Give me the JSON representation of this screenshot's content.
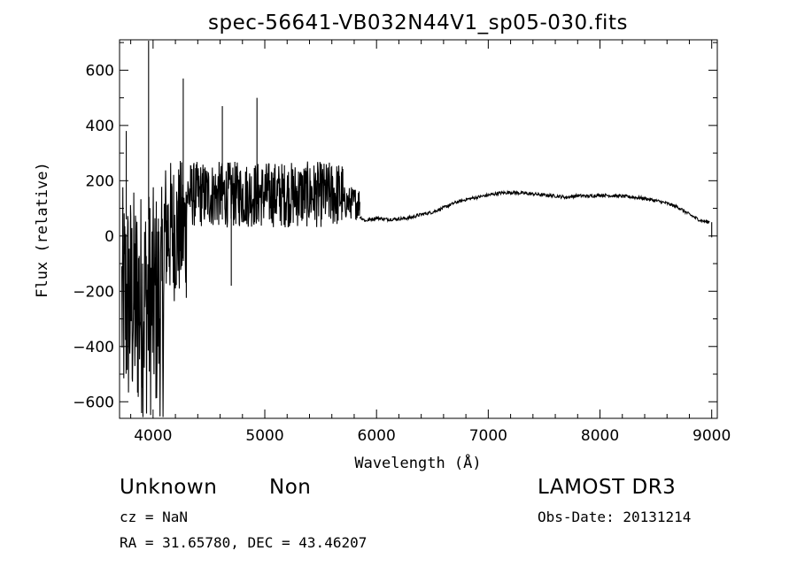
{
  "chart_data": {
    "type": "line",
    "title": "spec-56641-VB032N44V1_sp05-030.fits",
    "xlabel": "Wavelength (Å)",
    "ylabel": "Flux (relative)",
    "xlim": [
      3700,
      9050
    ],
    "ylim": [
      -660,
      710
    ],
    "xticks": [
      4000,
      5000,
      6000,
      7000,
      8000,
      9000
    ],
    "yticks": [
      -600,
      -400,
      -200,
      0,
      200,
      400,
      600
    ],
    "continuum": {
      "x": [
        5850,
        5900,
        6000,
        6100,
        6200,
        6300,
        6400,
        6500,
        6600,
        6700,
        6800,
        6900,
        7000,
        7100,
        7200,
        7300,
        7400,
        7500,
        7600,
        7700,
        7800,
        7900,
        8000,
        8100,
        8200,
        8300,
        8400,
        8500,
        8600,
        8700,
        8800,
        8900,
        8980
      ],
      "y": [
        70,
        55,
        65,
        60,
        62,
        66,
        78,
        86,
        102,
        120,
        132,
        140,
        148,
        155,
        158,
        155,
        152,
        148,
        145,
        140,
        146,
        144,
        148,
        146,
        144,
        140,
        136,
        128,
        118,
        104,
        78,
        56,
        50
      ]
    },
    "noisy_segments": [
      {
        "x_start": 3720,
        "x_end": 4100,
        "center": -240,
        "amplitude": 420
      },
      {
        "x_start": 4100,
        "x_end": 4300,
        "center": 20,
        "amplitude": 260
      },
      {
        "x_start": 4300,
        "x_end": 5700,
        "center": 150,
        "amplitude": 120
      },
      {
        "x_start": 5700,
        "x_end": 5850,
        "center": 120,
        "amplitude": 60
      }
    ],
    "spikes": [
      {
        "x": 3760,
        "y": 380
      },
      {
        "x": 3960,
        "y": 710
      },
      {
        "x": 4270,
        "y": 570
      },
      {
        "x": 4620,
        "y": 470
      },
      {
        "x": 4700,
        "y": -180
      },
      {
        "x": 4930,
        "y": 500
      },
      {
        "x": 9000,
        "y": -5
      }
    ]
  },
  "annotations": {
    "object_class": "Unknown",
    "object_subclass": "Non",
    "survey": "LAMOST DR3",
    "redshift": "cz = NaN",
    "obs_date": "Obs-Date: 20131214",
    "coords": "RA =  31.65780, DEC =  43.46207"
  },
  "colors": {
    "line": "#000000",
    "background": "#ffffff"
  }
}
